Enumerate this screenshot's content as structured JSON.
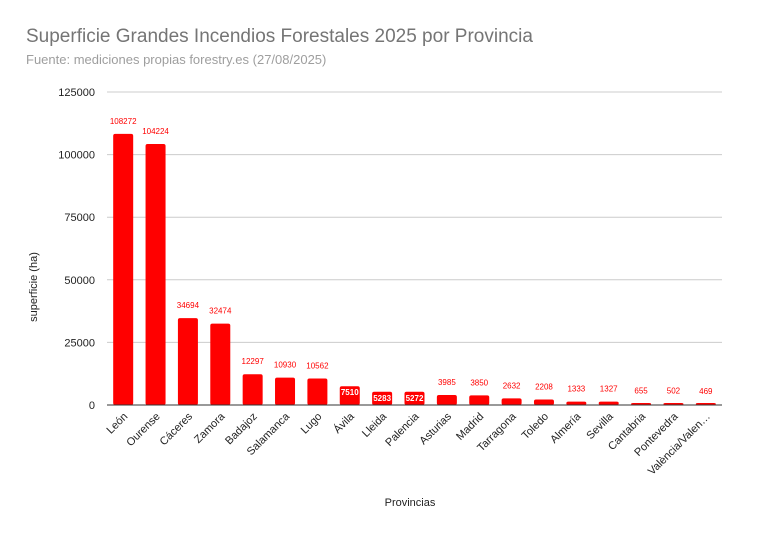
{
  "chart_data": {
    "type": "bar",
    "title": "Superficie Grandes Incendios Forestales 2025 por Provincia",
    "subtitle": "Fuente: mediciones propias forestry.es (27/08/2025)",
    "xlabel": "Provincias",
    "ylabel": "superficie (ha)",
    "ylim": [
      0,
      125000
    ],
    "yticks": [
      "0",
      "25000",
      "50000",
      "75000",
      "100000",
      "125000"
    ],
    "bar_color": "#ff0000",
    "grid": true,
    "categories": [
      "León",
      "Ourense",
      "Cáceres",
      "Zamora",
      "Badajoz",
      "Salamanca",
      "Lugo",
      "Ávila",
      "Lleida",
      "Palencia",
      "Asturias",
      "Madrid",
      "Tarragona",
      "Toledo",
      "Almería",
      "Sevilla",
      "Cantabria",
      "Pontevedra",
      "València/Valen…"
    ],
    "values": [
      108272,
      104224,
      34694,
      32474,
      12297,
      10930,
      10562,
      7510,
      5283,
      5272,
      3985,
      3850,
      2632,
      2208,
      1333,
      1327,
      655,
      502,
      469
    ],
    "data_labels": [
      "108272",
      "104224",
      "34694",
      "32474",
      "12297",
      "10930",
      "10562",
      "7510",
      "5283",
      "5272",
      "3985",
      "3850",
      "2632",
      "2208",
      "1333",
      "1327",
      "655",
      "502",
      "469"
    ]
  }
}
